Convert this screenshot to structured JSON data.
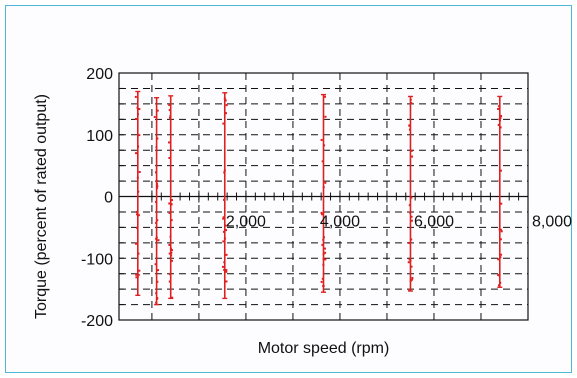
{
  "chart_data": {
    "type": "scatter",
    "title": "",
    "xlabel": "Motor speed (rpm)",
    "ylabel": "Torque (percent of rated output)",
    "xlim": [
      -700,
      8000
    ],
    "ylim": [
      -200,
      200
    ],
    "x_ticks": [
      {
        "value": 2000,
        "label": "2,000"
      },
      {
        "value": 4000,
        "label": "4,000"
      },
      {
        "value": 6000,
        "label": "6,000"
      },
      {
        "value": 8000,
        "label": "8,000"
      }
    ],
    "y_ticks": [
      {
        "value": 200,
        "label": "200"
      },
      {
        "value": 100,
        "label": "100"
      },
      {
        "value": 0,
        "label": "0"
      },
      {
        "value": -100,
        "label": "-100"
      },
      {
        "value": -200,
        "label": "-200"
      }
    ],
    "grid": "dashed",
    "series": [
      {
        "color": "#e02020",
        "speed_bands": [
          {
            "x": -300,
            "y_min": -160,
            "y_max": 170
          },
          {
            "x": 100,
            "y_min": -175,
            "y_max": 160
          },
          {
            "x": 400,
            "y_min": -165,
            "y_max": 163
          },
          {
            "x": 1550,
            "y_min": -165,
            "y_max": 168
          },
          {
            "x": 3650,
            "y_min": -155,
            "y_max": 165
          },
          {
            "x": 5500,
            "y_min": -153,
            "y_max": 162
          },
          {
            "x": 7400,
            "y_min": -147,
            "y_max": 162
          }
        ]
      }
    ]
  }
}
